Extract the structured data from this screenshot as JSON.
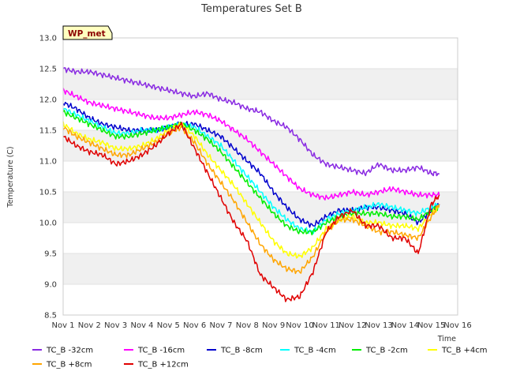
{
  "chart_data": {
    "type": "line",
    "title": "Temperatures Set B",
    "xlabel": "Time",
    "ylabel": "Temperature (C)",
    "badge": "WP_met",
    "xlim": [
      0,
      15
    ],
    "ylim": [
      8.5,
      13.0
    ],
    "x_ticks": [
      "Nov 1",
      "Nov 2",
      "Nov 3",
      "Nov 4",
      "Nov 5",
      "Nov 6",
      "Nov 7",
      "Nov 8",
      "Nov 9",
      "Nov 10",
      "Nov 11",
      "Nov 12",
      "Nov 13",
      "Nov 14",
      "Nov 15",
      "Nov 16"
    ],
    "y_ticks": [
      "8.5",
      "9.0",
      "9.5",
      "10.0",
      "10.5",
      "11.0",
      "11.5",
      "12.0",
      "12.5",
      "13.0"
    ],
    "grid": true,
    "legend_position": "bottom",
    "x": [
      0,
      0.5,
      1,
      1.5,
      2,
      2.5,
      3,
      3.5,
      4,
      4.5,
      5,
      5.5,
      6,
      6.5,
      7,
      7.5,
      8,
      8.5,
      9,
      9.5,
      10,
      10.5,
      11,
      11.5,
      12,
      12.5,
      13,
      13.5,
      14,
      14.3
    ],
    "series": [
      {
        "name": "TC_B -32cm",
        "color": "#8a2be2",
        "values": [
          12.5,
          12.45,
          12.45,
          12.4,
          12.35,
          12.3,
          12.25,
          12.2,
          12.15,
          12.1,
          12.05,
          12.1,
          12.0,
          11.95,
          11.85,
          11.8,
          11.65,
          11.55,
          11.35,
          11.1,
          10.95,
          10.9,
          10.85,
          10.8,
          10.95,
          10.85,
          10.85,
          10.9,
          10.8,
          10.8
        ]
      },
      {
        "name": "TC_B -16cm",
        "color": "#ff00ff",
        "values": [
          12.15,
          12.05,
          11.95,
          11.9,
          11.85,
          11.8,
          11.75,
          11.7,
          11.7,
          11.75,
          11.8,
          11.75,
          11.65,
          11.5,
          11.35,
          11.15,
          10.95,
          10.75,
          10.55,
          10.45,
          10.4,
          10.45,
          10.5,
          10.45,
          10.5,
          10.55,
          10.5,
          10.45,
          10.45,
          10.45
        ]
      },
      {
        "name": "TC_B -8cm",
        "color": "#0000cd",
        "values": [
          11.95,
          11.85,
          11.7,
          11.6,
          11.55,
          11.5,
          11.5,
          11.5,
          11.55,
          11.6,
          11.6,
          11.5,
          11.4,
          11.2,
          11.0,
          10.8,
          10.5,
          10.25,
          10.05,
          9.95,
          10.1,
          10.2,
          10.2,
          10.25,
          10.25,
          10.2,
          10.15,
          10.0,
          10.2,
          10.3
        ]
      },
      {
        "name": "TC_B -4cm",
        "color": "#00ffff",
        "values": [
          11.85,
          11.75,
          11.65,
          11.55,
          11.45,
          11.45,
          11.5,
          11.5,
          11.55,
          11.6,
          11.55,
          11.4,
          11.25,
          11.0,
          10.75,
          10.5,
          10.25,
          10.05,
          9.9,
          9.85,
          10.05,
          10.15,
          10.2,
          10.25,
          10.3,
          10.25,
          10.2,
          10.15,
          10.25,
          10.3
        ]
      },
      {
        "name": "TC_B -2cm",
        "color": "#00ee00",
        "values": [
          11.8,
          11.7,
          11.6,
          11.5,
          11.4,
          11.4,
          11.45,
          11.5,
          11.55,
          11.6,
          11.5,
          11.35,
          11.15,
          10.9,
          10.65,
          10.4,
          10.15,
          9.95,
          9.85,
          9.85,
          10.0,
          10.1,
          10.15,
          10.15,
          10.15,
          10.1,
          10.1,
          10.05,
          10.2,
          10.25
        ]
      },
      {
        "name": "TC_B +4cm",
        "color": "#ffff00",
        "values": [
          11.6,
          11.45,
          11.35,
          11.3,
          11.2,
          11.2,
          11.25,
          11.35,
          11.5,
          11.6,
          11.4,
          11.1,
          10.85,
          10.6,
          10.3,
          10.0,
          9.7,
          9.5,
          9.45,
          9.6,
          9.9,
          10.05,
          10.1,
          10.0,
          10.0,
          9.95,
          9.95,
          9.9,
          10.15,
          10.25
        ]
      },
      {
        "name": "TC_B +8cm",
        "color": "#ffa500",
        "values": [
          11.55,
          11.4,
          11.3,
          11.2,
          11.1,
          11.1,
          11.2,
          11.3,
          11.45,
          11.55,
          11.3,
          10.95,
          10.65,
          10.35,
          10.0,
          9.65,
          9.4,
          9.25,
          9.2,
          9.45,
          9.85,
          10.05,
          10.05,
          9.95,
          9.85,
          9.85,
          9.8,
          9.75,
          10.1,
          10.3
        ]
      },
      {
        "name": "TC_B +12cm",
        "color": "#e00000",
        "values": [
          11.4,
          11.25,
          11.15,
          11.1,
          10.95,
          11.0,
          11.1,
          11.25,
          11.45,
          11.6,
          11.2,
          10.8,
          10.4,
          10.0,
          9.7,
          9.15,
          8.95,
          8.75,
          8.8,
          9.2,
          9.85,
          10.1,
          10.2,
          9.95,
          9.95,
          9.75,
          9.75,
          9.5,
          10.3,
          10.45
        ]
      }
    ]
  }
}
